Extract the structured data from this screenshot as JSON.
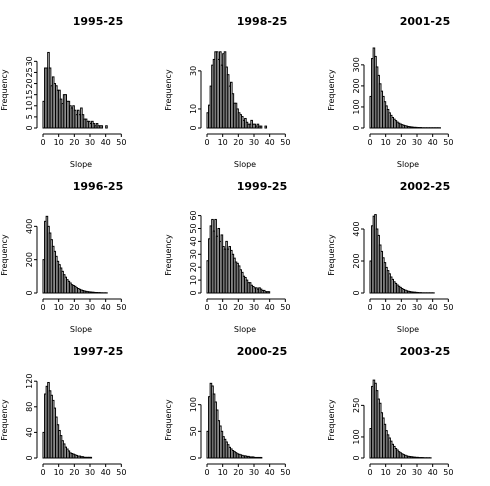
{
  "chart_data": [
    {
      "type": "bar",
      "title": "1995-25",
      "xlabel": "Slope",
      "ylabel": "Frequency",
      "xlim": [
        0,
        60
      ],
      "xticks": [
        0,
        10,
        20,
        30,
        40,
        50
      ],
      "yticks": [
        0,
        5,
        10,
        15,
        20,
        25,
        30
      ],
      "ylim": [
        0,
        36
      ],
      "bin_width": 1,
      "values": [
        12,
        27,
        27,
        34,
        27,
        19,
        23,
        20,
        19,
        17,
        17,
        13,
        11,
        15,
        15,
        12,
        12,
        10,
        9,
        10,
        8,
        6,
        8,
        6,
        9,
        6,
        4,
        4,
        3,
        3,
        2,
        3,
        2,
        1,
        2,
        1,
        1,
        1,
        0,
        0,
        1,
        0,
        0,
        0,
        0,
        0
      ]
    },
    {
      "type": "bar",
      "title": "1996-25",
      "xlabel": "Slope",
      "ylabel": "Frequency",
      "xlim": [
        0,
        60
      ],
      "xticks": [
        0,
        10,
        20,
        30,
        40,
        50
      ],
      "yticks": [
        0,
        200,
        400
      ],
      "ylim": [
        0,
        480
      ],
      "bin_width": 1,
      "values": [
        200,
        430,
        460,
        400,
        360,
        320,
        280,
        250,
        220,
        190,
        170,
        150,
        130,
        110,
        95,
        80,
        70,
        60,
        50,
        45,
        40,
        32,
        27,
        22,
        18,
        15,
        12,
        10,
        8,
        7,
        6,
        5,
        4,
        3,
        3,
        2,
        2,
        1,
        1,
        1,
        1,
        0,
        0,
        0,
        0,
        0
      ]
    },
    {
      "type": "bar",
      "title": "1997-25",
      "xlabel": "Slope",
      "ylabel": "Frequency",
      "xlim": [
        0,
        60
      ],
      "xticks": [
        0,
        10,
        20,
        30,
        40,
        50
      ],
      "yticks": [
        0,
        40,
        80,
        120
      ],
      "ylim": [
        0,
        125
      ],
      "bin_width": 1,
      "values": [
        40,
        100,
        112,
        118,
        105,
        98,
        90,
        78,
        64,
        52,
        43,
        35,
        27,
        22,
        17,
        14,
        11,
        8,
        7,
        6,
        5,
        4,
        3,
        3,
        2,
        2,
        1,
        1,
        1,
        1,
        1,
        0,
        0,
        0,
        0,
        0,
        0,
        0,
        0,
        0,
        0,
        0,
        0,
        0,
        0,
        0
      ]
    },
    {
      "type": "bar",
      "title": "1998-25",
      "xlabel": "Slope",
      "ylabel": "Frequency",
      "xlim": [
        0,
        60
      ],
      "xticks": [
        0,
        10,
        20,
        30,
        40,
        50
      ],
      "yticks": [
        0,
        10,
        30
      ],
      "ylim": [
        0,
        42
      ],
      "bin_width": 1,
      "values": [
        8,
        12,
        22,
        33,
        36,
        40,
        40,
        36,
        40,
        33,
        39,
        40,
        32,
        28,
        22,
        24,
        18,
        13,
        13,
        10,
        8,
        7,
        6,
        4,
        5,
        3,
        2,
        2,
        4,
        2,
        2,
        1,
        2,
        1,
        1,
        0,
        0,
        1,
        0,
        0,
        0,
        0,
        0,
        0,
        0,
        0
      ]
    },
    {
      "type": "bar",
      "title": "1999-25",
      "xlabel": "Slope",
      "ylabel": "Frequency",
      "xlim": [
        0,
        60
      ],
      "xticks": [
        0,
        10,
        20,
        30,
        40,
        50
      ],
      "yticks": [
        0,
        10,
        20,
        30,
        40,
        50,
        60
      ],
      "ylim": [
        0,
        62
      ],
      "bin_width": 1,
      "values": [
        25,
        42,
        52,
        57,
        48,
        57,
        44,
        50,
        40,
        45,
        36,
        34,
        40,
        34,
        36,
        33,
        30,
        27,
        24,
        23,
        21,
        18,
        16,
        13,
        12,
        10,
        8,
        8,
        6,
        5,
        4,
        4,
        3,
        4,
        3,
        2,
        2,
        1,
        1,
        1,
        0,
        0,
        0,
        0,
        0,
        0
      ]
    },
    {
      "type": "bar",
      "title": "2000-25",
      "xlabel": "Slope",
      "ylabel": "Frequency",
      "xlim": [
        0,
        60
      ],
      "xticks": [
        0,
        10,
        20,
        30,
        40,
        50
      ],
      "yticks": [
        0,
        50,
        100
      ],
      "ylim": [
        0,
        150
      ],
      "bin_width": 1,
      "values": [
        50,
        115,
        140,
        135,
        120,
        105,
        90,
        70,
        60,
        50,
        40,
        35,
        30,
        25,
        20,
        17,
        14,
        12,
        10,
        8,
        7,
        6,
        5,
        4,
        4,
        3,
        3,
        2,
        2,
        2,
        1,
        1,
        1,
        1,
        1,
        0,
        0,
        0,
        0,
        0,
        0,
        0,
        0,
        0,
        0,
        0
      ]
    },
    {
      "type": "bar",
      "title": "2001-25",
      "xlabel": "Slope",
      "ylabel": "Frequency",
      "xlim": [
        0,
        60
      ],
      "xticks": [
        0,
        10,
        20,
        30,
        40,
        50
      ],
      "yticks": [
        0,
        100,
        200,
        300
      ],
      "ylim": [
        0,
        380
      ],
      "bin_width": 1,
      "values": [
        150,
        330,
        380,
        340,
        290,
        250,
        210,
        175,
        150,
        125,
        105,
        88,
        72,
        60,
        50,
        42,
        35,
        28,
        23,
        19,
        16,
        13,
        11,
        9,
        7,
        6,
        5,
        4,
        3,
        3,
        2,
        2,
        2,
        1,
        1,
        1,
        1,
        1,
        1,
        1,
        1,
        1,
        1,
        1,
        1,
        0
      ]
    },
    {
      "type": "bar",
      "title": "2002-25",
      "xlabel": "Slope",
      "ylabel": "Frequency",
      "xlim": [
        0,
        60
      ],
      "xticks": [
        0,
        10,
        20,
        30,
        40,
        50
      ],
      "yticks": [
        0,
        200,
        400
      ],
      "ylim": [
        0,
        500
      ],
      "bin_width": 1,
      "values": [
        200,
        420,
        480,
        490,
        400,
        360,
        300,
        260,
        220,
        190,
        160,
        140,
        120,
        100,
        85,
        70,
        60,
        50,
        42,
        35,
        28,
        22,
        18,
        14,
        11,
        9,
        7,
        6,
        5,
        4,
        3,
        2,
        2,
        1,
        1,
        1,
        1,
        1,
        1,
        1,
        1,
        0,
        0,
        0,
        0,
        0
      ]
    },
    {
      "type": "bar",
      "title": "2003-25",
      "xlabel": "Slope",
      "ylabel": "Frequency",
      "xlim": [
        0,
        60
      ],
      "xticks": [
        0,
        10,
        20,
        30,
        40,
        50
      ],
      "yticks": [
        0,
        100,
        250
      ],
      "ylim": [
        0,
        380
      ],
      "bin_width": 1,
      "values": [
        140,
        340,
        370,
        355,
        320,
        280,
        260,
        215,
        190,
        160,
        130,
        110,
        95,
        80,
        65,
        55,
        45,
        38,
        30,
        25,
        20,
        16,
        13,
        10,
        8,
        7,
        6,
        5,
        4,
        3,
        3,
        2,
        2,
        2,
        1,
        1,
        1,
        1,
        1,
        0,
        0,
        0,
        0,
        0,
        0,
        0
      ]
    }
  ]
}
